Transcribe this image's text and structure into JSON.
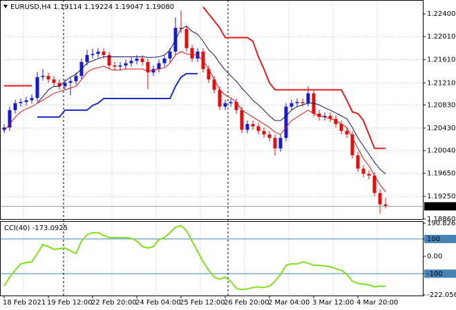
{
  "chart_data": [
    {
      "type": "candlestick",
      "title": "EURUSD,H4  1.19114 1.19224 1.19047 1.19080",
      "categories": [
        "18 Feb 2021",
        null,
        null,
        null,
        null,
        null,
        null,
        null,
        "19 Feb 12:00",
        null,
        null,
        null,
        null,
        null,
        null,
        null,
        "22 Feb 20:00",
        null,
        null,
        null,
        null,
        null,
        null,
        null,
        "24 Feb 04:00",
        null,
        null,
        null,
        null,
        null,
        null,
        null,
        "25 Feb 12:00",
        null,
        null,
        null,
        null,
        null,
        null,
        null,
        "26 Feb 20:00",
        null,
        null,
        null,
        null,
        null,
        null,
        null,
        "2 Mar 04:00",
        null,
        null,
        null,
        null,
        null,
        null,
        null,
        "3 Mar 12:00",
        null,
        null,
        null,
        null,
        null,
        null,
        null,
        "4 Mar 20:00",
        null,
        null,
        null,
        null,
        null
      ],
      "open": [
        1.204,
        1.2044,
        1.2074,
        1.2086,
        1.2088,
        1.2091,
        1.2095,
        1.2131,
        1.2133,
        1.2127,
        1.2121,
        1.2115,
        1.2121,
        1.2124,
        1.2133,
        1.2157,
        1.2169,
        1.2171,
        1.2175,
        1.2169,
        1.2151,
        1.2149,
        1.2151,
        1.2155,
        1.2159,
        1.2163,
        1.2157,
        1.2139,
        1.2145,
        1.2155,
        1.2163,
        1.2175,
        1.2216,
        1.2214,
        1.2181,
        1.2163,
        1.2175,
        1.2145,
        1.2127,
        1.2109,
        1.208,
        1.2086,
        1.2088,
        1.2074,
        1.204,
        1.205,
        1.2046,
        1.2038,
        1.2032,
        1.2026,
        1.2008,
        1.2026,
        1.208,
        1.2086,
        1.2088,
        1.2086,
        1.2103,
        1.2068,
        1.2062,
        1.2064,
        1.2059,
        1.205,
        1.2038,
        1.2032,
        1.1996,
        1.1973,
        1.1964,
        1.1961,
        1.1931,
        1.19114
      ],
      "high": [
        1.205,
        1.208,
        1.2092,
        1.2094,
        1.2097,
        1.2101,
        1.214,
        1.2145,
        1.2139,
        1.2133,
        1.2127,
        1.2127,
        1.213,
        1.2139,
        1.2163,
        1.2178,
        1.218,
        1.2181,
        1.2181,
        1.2175,
        1.2157,
        1.2157,
        1.2161,
        1.2165,
        1.2169,
        1.2169,
        1.2163,
        1.2151,
        1.2161,
        1.2169,
        1.2181,
        1.2234,
        1.2246,
        1.222,
        1.2187,
        1.2181,
        1.2181,
        1.2151,
        1.2133,
        1.2115,
        1.2092,
        1.2094,
        1.2094,
        1.208,
        1.2056,
        1.2056,
        1.2052,
        1.2044,
        1.2038,
        1.2032,
        1.2032,
        1.2086,
        1.2092,
        1.2094,
        1.2094,
        1.2115,
        1.2109,
        1.2074,
        1.207,
        1.207,
        1.2065,
        1.2056,
        1.2044,
        1.2038,
        1.2002,
        1.1979,
        1.197,
        1.1967,
        1.1937,
        1.19224
      ],
      "low": [
        1.2034,
        1.2038,
        1.2068,
        1.208,
        1.2082,
        1.2085,
        1.2089,
        1.2125,
        1.2121,
        1.2115,
        1.2109,
        1.2109,
        1.21,
        1.2118,
        1.2127,
        1.2151,
        1.2163,
        1.2165,
        1.2163,
        1.2145,
        1.2143,
        1.2143,
        1.2145,
        1.2149,
        1.2153,
        1.2151,
        1.211,
        1.2133,
        1.2139,
        1.2149,
        1.2157,
        1.2169,
        1.2208,
        1.2175,
        1.2157,
        1.2157,
        1.2139,
        1.2121,
        1.2103,
        1.2074,
        1.2074,
        1.208,
        1.2068,
        1.2034,
        1.2034,
        1.204,
        1.2032,
        1.2026,
        1.202,
        1.1995,
        1.2002,
        1.202,
        1.2074,
        1.208,
        1.208,
        1.208,
        1.2062,
        1.2056,
        1.2056,
        1.2053,
        1.2044,
        1.2032,
        1.2026,
        1.199,
        1.1967,
        1.1958,
        1.1955,
        1.1925,
        1.1895,
        1.19047
      ],
      "close": [
        1.2044,
        1.2074,
        1.2086,
        1.2088,
        1.2091,
        1.2095,
        1.2131,
        1.2133,
        1.2127,
        1.2121,
        1.2115,
        1.2121,
        1.2124,
        1.2133,
        1.2157,
        1.2169,
        1.2171,
        1.2175,
        1.2169,
        1.2151,
        1.2149,
        1.2151,
        1.2155,
        1.2159,
        1.2163,
        1.2157,
        1.2139,
        1.2145,
        1.2155,
        1.2163,
        1.2175,
        1.2216,
        1.2214,
        1.2181,
        1.2163,
        1.2175,
        1.2145,
        1.2127,
        1.2109,
        1.208,
        1.2086,
        1.2088,
        1.2074,
        1.204,
        1.205,
        1.2046,
        1.2038,
        1.2032,
        1.2026,
        1.2008,
        1.2026,
        1.208,
        1.2086,
        1.2088,
        1.2086,
        1.2103,
        1.2068,
        1.2062,
        1.2064,
        1.2059,
        1.205,
        1.2038,
        1.2032,
        1.1996,
        1.1973,
        1.1964,
        1.1961,
        1.1931,
        1.19114,
        1.1908
      ],
      "up_color": "#1a1acd",
      "down_color": "#e01010",
      "lines": [
        {
          "color": "#e01010",
          "width": 1,
          "values": [
            1.2038,
            1.205,
            1.2062,
            1.2071,
            1.2076,
            1.208,
            1.2086,
            1.2091,
            1.2097,
            1.2103,
            1.2106,
            1.2109,
            1.2112,
            1.2115,
            1.2127,
            1.2139,
            1.2145,
            1.2147,
            1.215,
            1.2145,
            1.2143,
            1.2143,
            1.2145,
            1.2145,
            1.2145,
            1.2145,
            1.2141,
            1.2143,
            1.2145,
            1.2147,
            1.2155,
            1.2169,
            1.2175,
            1.2171,
            1.2169,
            1.2169,
            1.2159,
            1.2145,
            1.2127,
            1.2109,
            1.21,
            1.2095,
            1.2088,
            1.2074,
            1.2068,
            1.2062,
            1.2056,
            1.205,
            1.2044,
            1.2036,
            1.2032,
            1.2044,
            1.2056,
            1.2062,
            1.2068,
            1.2074,
            1.2068,
            1.2064,
            1.2062,
            1.2059,
            1.2056,
            1.205,
            1.2044,
            1.2026,
            1.2008,
            1.199,
            1.1978,
            1.1961,
            1.1945,
            1.1933
          ]
        },
        {
          "color": "#101060",
          "width": 1,
          "values": [
            null,
            null,
            null,
            null,
            null,
            null,
            1.2086,
            1.2097,
            1.2109,
            1.2115,
            1.2115,
            1.2124,
            1.2131,
            1.2136,
            1.2145,
            1.2155,
            1.2159,
            1.2163,
            1.2166,
            1.2166,
            1.2166,
            1.2166,
            1.2166,
            1.2166,
            1.2166,
            1.2166,
            1.2165,
            1.2165,
            1.2166,
            1.2169,
            1.2178,
            1.2195,
            1.2214,
            1.2219,
            1.221,
            1.2205,
            1.2193,
            1.2178,
            1.2169,
            1.2155,
            1.2143,
            1.2133,
            1.2124,
            1.2112,
            1.2102,
            1.2091,
            1.2083,
            1.2074,
            1.2064,
            1.2056,
            1.2056,
            1.2064,
            1.2074,
            1.208,
            1.2083,
            1.2086,
            1.2086,
            1.2083,
            1.2078,
            1.2074,
            1.2069,
            1.2064,
            1.2059,
            1.2044,
            1.2026,
            1.2012,
            1.1998,
            1.1984,
            1.1972,
            1.1964
          ]
        },
        {
          "color": "#e31a1c",
          "width": 2,
          "values": [
            1.2116,
            1.2116,
            1.2116,
            1.2116,
            1.2116,
            1.2116,
            null,
            null,
            null,
            null,
            null,
            null,
            null,
            null,
            null,
            null,
            null,
            null,
            null,
            null,
            null,
            null,
            null,
            null,
            null,
            null,
            null,
            null,
            null,
            null,
            null,
            null,
            null,
            null,
            null,
            null,
            1.2252,
            1.224,
            1.2228,
            1.2216,
            1.2199,
            1.2199,
            1.2199,
            1.2199,
            1.2199,
            1.2193,
            1.2166,
            1.2145,
            1.2121,
            1.2109,
            1.2109,
            1.2109,
            1.2109,
            1.2109,
            1.2109,
            1.2109,
            1.2109,
            1.2109,
            1.2109,
            1.2109,
            1.2109,
            1.2109,
            1.2091,
            1.2071,
            1.2068,
            1.2056,
            1.2032,
            1.2008,
            1.2008,
            1.2008
          ]
        },
        {
          "color": "#1a29c7",
          "width": 2,
          "values": [
            null,
            null,
            null,
            null,
            null,
            null,
            1.2062,
            1.2062,
            1.2062,
            1.2062,
            1.2062,
            1.2074,
            1.2074,
            1.2074,
            1.2074,
            1.2074,
            1.2082,
            1.2086,
            1.2094,
            1.2094,
            1.2094,
            1.2094,
            1.2094,
            1.2094,
            1.2094,
            1.2094,
            1.2094,
            1.2094,
            1.2094,
            1.2094,
            1.2094,
            1.2115,
            1.2131,
            1.2137,
            1.2137,
            1.2137,
            null,
            null,
            null,
            null,
            null,
            null,
            null,
            null,
            null,
            null,
            null,
            null,
            null,
            null,
            null,
            null,
            null,
            null,
            null,
            null,
            null,
            null,
            null,
            null,
            null,
            null,
            null,
            null,
            null,
            null,
            null,
            null,
            null,
            null
          ]
        }
      ],
      "ylim": [
        1.1886,
        1.2264
      ],
      "yticks": [
        {
          "value": 1.224,
          "label": "1.22400"
        },
        {
          "value": 1.2201,
          "label": "1.22010"
        },
        {
          "value": 1.2161,
          "label": "1.21610"
        },
        {
          "value": 1.2121,
          "label": "1.21210"
        },
        {
          "value": 1.2083,
          "label": "1.20830"
        },
        {
          "value": 1.2043,
          "label": "1.20430"
        },
        {
          "value": 1.2004,
          "label": "1.20040"
        },
        {
          "value": 1.1965,
          "label": "1.19650"
        },
        {
          "value": 1.1925,
          "label": "1.19250"
        },
        {
          "value": 1.1886,
          "label": "1.18860"
        }
      ],
      "last_price": {
        "value": 1.1908,
        "label": "1.19080"
      },
      "grid": true
    },
    {
      "type": "line",
      "title": "CCI(40) -173.0925",
      "values": [
        -172,
        -120,
        -80,
        -44,
        -36,
        -32,
        16,
        68,
        56,
        40,
        44,
        48,
        32,
        16,
        88,
        124,
        136,
        136,
        120,
        108,
        108,
        108,
        108,
        104,
        88,
        56,
        48,
        56,
        96,
        108,
        136,
        168,
        176,
        148,
        88,
        28,
        -32,
        -80,
        -120,
        -132,
        -120,
        -144,
        -184,
        -192,
        -188,
        -180,
        -176,
        -180,
        -172,
        -144,
        -104,
        -52,
        -44,
        -44,
        -32,
        -40,
        -52,
        -52,
        -56,
        -60,
        -72,
        -80,
        -104,
        -144,
        -156,
        -160,
        -164,
        -176,
        -172,
        -173.0925
      ],
      "color": "#7ee01a",
      "ylim": [
        -222.0562,
        190.8262
      ],
      "yticks": [
        190.8262,
        100,
        {
          "value": 0,
          "label": "0.00"
        },
        -100,
        -222.0562
      ],
      "levels": [
        100,
        -100
      ],
      "level_color": "#4682b4"
    }
  ]
}
